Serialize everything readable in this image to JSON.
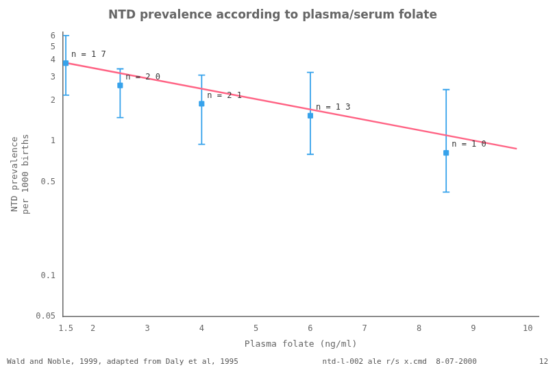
{
  "chart_data": {
    "type": "scatter",
    "title": "NTD prevalence according to plasma/serum folate",
    "x_label": "Plasma folate (ng/ml)",
    "y_label": [
      "NTD prevalence",
      "per 1000 births"
    ],
    "log": "y",
    "grid": false,
    "xlim": [
      1.45,
      10.2
    ],
    "ylim": [
      0.05,
      6.5
    ],
    "xticks": [
      1.5,
      2,
      3,
      4,
      5,
      6,
      7,
      8,
      9,
      10
    ],
    "yticks": [
      0.05,
      0.1,
      0.5,
      1,
      2,
      3,
      4,
      5,
      6
    ],
    "series": [
      {
        "type": "line",
        "color": "#ff6384",
        "x": [
          1.5,
          9.8
        ],
        "values": [
          3.82,
          0.88
        ]
      },
      {
        "type": "scatter",
        "marker": "square",
        "color": "#36a2eb",
        "x": [
          1.5,
          2.5,
          4.0,
          6.0,
          8.5
        ],
        "values": [
          3.8,
          2.6,
          1.9,
          1.55,
          0.82
        ],
        "error_low": [
          1.6,
          1.1,
          0.95,
          0.75,
          0.4
        ],
        "error_high": [
          2.3,
          0.85,
          1.2,
          1.7,
          1.6
        ],
        "point_labels": [
          "n = 1 7",
          "n = 2 0",
          "n = 2 1",
          "n = 1 3",
          "n = 1 0"
        ]
      }
    ],
    "annotations": [
      "Wald and Noble, 1999, adapted from Daly et al, 1995",
      "ntd-l-002 ale r/s x.cmd  8-07-2000",
      "12"
    ]
  }
}
